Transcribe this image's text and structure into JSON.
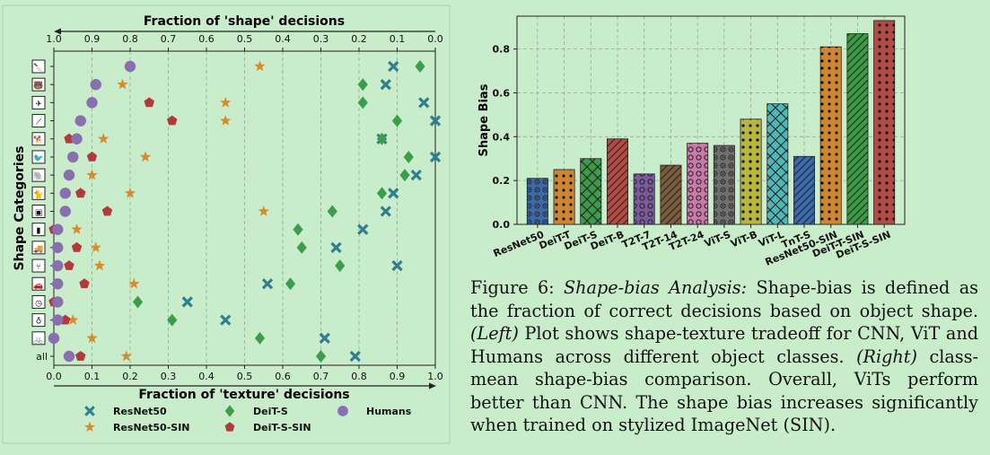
{
  "caption": {
    "fig_label": "Figure 6: ",
    "title_italic": "Shape-bias Analysis:",
    "t1": " Shape-bias is defined as the fraction of correct decisions based on object shape. ",
    "left_label": "(Left)",
    "t2": " Plot shows shape-texture tradeoff for CNN, ViT and Humans across different object classes. ",
    "right_label": "(Right)",
    "t3": " class-mean shape-bias comparison. Overall, ViTs perform better than CNN. The shape bias increases significantly when trained on stylized ImageNet (SIN)."
  },
  "chart_data": [
    {
      "type": "scatter",
      "title": "Fraction of 'shape' decisions",
      "xlabel": "Fraction of 'texture' decisions",
      "ylabel": "Shape Categories",
      "xlim": [
        0,
        1
      ],
      "top_xlim": [
        1,
        0
      ],
      "x_ticks": [
        "0.0",
        "0.1",
        "0.2",
        "0.3",
        "0.4",
        "0.5",
        "0.6",
        "0.7",
        "0.8",
        "0.9",
        "1.0"
      ],
      "top_ticks": [
        "1.0",
        "0.9",
        "0.8",
        "0.7",
        "0.6",
        "0.5",
        "0.4",
        "0.3",
        "0.2",
        "0.1",
        "0.0"
      ],
      "grid": true,
      "legend_position": "bottom",
      "categories": [
        "knife",
        "bear",
        "airplane",
        "clock-hands",
        "dog",
        "bird",
        "elephant",
        "cat",
        "truck-front",
        "bottle",
        "truck",
        "chair",
        "car",
        "clock",
        "bottle2",
        "bicycle",
        "all"
      ],
      "category_icons": [
        "🔪",
        "🐻",
        "✈",
        "⟋",
        "🐕",
        "🐦",
        "🐘",
        "🐈",
        "▣",
        "▮",
        "🚚",
        "⑂",
        "🚗",
        "◷",
        "♁",
        "🚲"
      ],
      "category_labels": [
        "",
        "",
        "",
        "",
        "",
        "",
        "",
        "",
        "",
        "",
        "",
        "",
        "",
        "",
        "",
        "",
        "all"
      ],
      "series": [
        {
          "name": "ResNet50",
          "marker": "x",
          "color": "#2e7f8f",
          "values": [
            0.89,
            0.87,
            0.97,
            1.0,
            0.86,
            1.0,
            0.95,
            0.89,
            0.87,
            0.81,
            0.74,
            0.9,
            0.56,
            0.35,
            0.45,
            0.71,
            0.79
          ]
        },
        {
          "name": "ResNet50-SIN",
          "marker": "star",
          "color": "#d88a2c",
          "values": [
            0.54,
            0.18,
            0.45,
            0.45,
            0.13,
            0.24,
            0.1,
            0.2,
            0.55,
            0.06,
            0.11,
            0.12,
            0.21,
            0.0,
            0.05,
            0.1,
            0.19
          ]
        },
        {
          "name": "DeiT-S",
          "marker": "diamond",
          "color": "#3a9e4a",
          "values": [
            0.96,
            0.81,
            0.81,
            0.9,
            0.86,
            0.93,
            0.92,
            0.86,
            0.73,
            0.64,
            0.65,
            0.75,
            0.62,
            0.22,
            0.31,
            0.54,
            0.7
          ]
        },
        {
          "name": "DeiT-S-SIN",
          "marker": "pentagon",
          "color": "#b23a3a",
          "values": [
            0.2,
            0.11,
            0.25,
            0.31,
            0.04,
            0.1,
            0.04,
            0.07,
            0.14,
            0.0,
            0.06,
            0.04,
            0.08,
            0.0,
            0.03,
            0.0,
            0.07
          ]
        },
        {
          "name": "Humans",
          "marker": "circle",
          "color": "#8a6fb0",
          "values": [
            0.2,
            0.11,
            0.1,
            0.07,
            0.06,
            0.05,
            0.04,
            0.03,
            0.03,
            0.01,
            0.01,
            0.01,
            0.01,
            0.01,
            0.01,
            0.0,
            0.04
          ]
        }
      ]
    },
    {
      "type": "bar",
      "ylabel": "Shape Bias",
      "ylim": [
        0,
        0.95
      ],
      "y_ticks": [
        "0.0",
        "0.2",
        "0.4",
        "0.6",
        "0.8"
      ],
      "grid": true,
      "categories": [
        "ResNet50",
        "DeiT-T",
        "DeiT-S",
        "DeiT-B",
        "T2T-7",
        "T2T-14",
        "T2T-24",
        "ViT-S",
        "ViT-B",
        "ViT-L",
        "TnT-S",
        "ResNet50-SIN",
        "DeiT-T-SIN",
        "DeiT-S-SIN"
      ],
      "values": [
        0.21,
        0.25,
        0.3,
        0.39,
        0.23,
        0.27,
        0.37,
        0.36,
        0.48,
        0.55,
        0.31,
        0.81,
        0.87,
        0.93
      ],
      "colors": [
        "#3c6aa8",
        "#d08530",
        "#3d9a48",
        "#b04c44",
        "#7a5a9a",
        "#7a5c3c",
        "#c97aa8",
        "#6f6f6f",
        "#b7b740",
        "#4fb7b7",
        "#3c6aa8",
        "#d08530",
        "#3d9a48",
        "#b04c44"
      ],
      "hatches": [
        "dotcircle",
        "dots",
        "cross",
        "diag",
        "ring",
        "diag",
        "ring",
        "dotcircle",
        "dots",
        "cross",
        "diag",
        "dots",
        "diag",
        "dots"
      ]
    }
  ]
}
